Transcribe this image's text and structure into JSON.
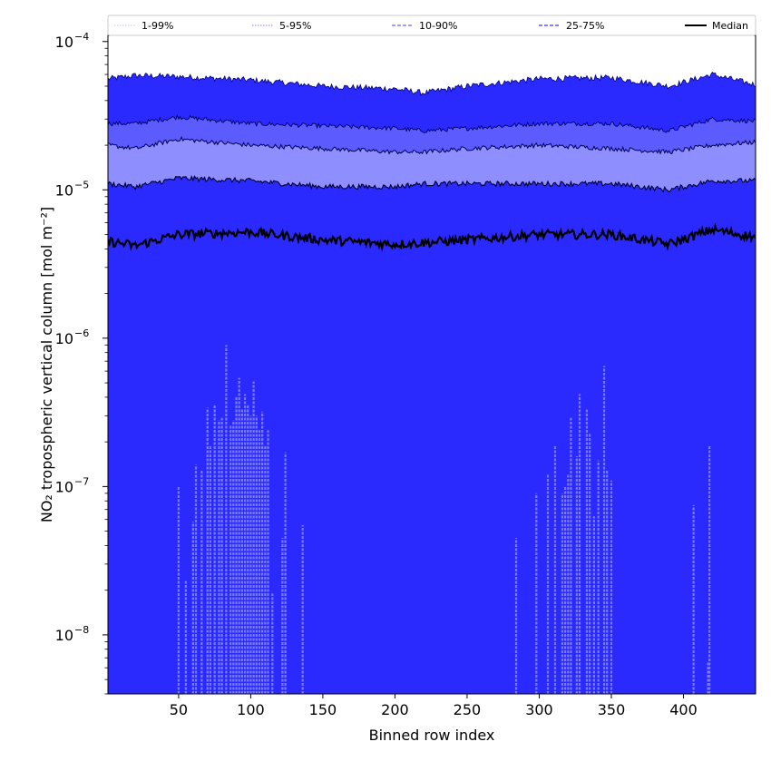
{
  "chart_data": {
    "type": "area",
    "title": "",
    "xlabel": "Binned row index",
    "ylabel": "NO₂ tropospheric vertical column [mol m⁻²]",
    "xscale": "linear",
    "yscale": "log",
    "xlim": [
      1,
      450
    ],
    "ylim": [
      4e-09,
      0.00011
    ],
    "x_ticks": [
      50,
      100,
      150,
      200,
      250,
      300,
      350,
      400
    ],
    "x_tick_labels": [
      "50",
      "100",
      "150",
      "200",
      "250",
      "300",
      "350",
      "400"
    ],
    "y_ticks": [
      1e-08,
      1e-07,
      1e-06,
      1e-05,
      0.0001
    ],
    "y_tick_labels": [
      "10",
      "10",
      "10",
      "10",
      "10"
    ],
    "y_tick_exponents": [
      "−8",
      "−7",
      "−6",
      "−5",
      "−4"
    ],
    "grid": false,
    "legend_position": "top",
    "legend": [
      {
        "label": "1-99%",
        "color": "#ccccff",
        "style": "dotted"
      },
      {
        "label": "5-95%",
        "color": "#9999ff",
        "style": "dotted"
      },
      {
        "label": "10-90%",
        "color": "#6666ff",
        "style": "dashed"
      },
      {
        "label": "25-75%",
        "color": "#3333ff",
        "style": "dashed"
      },
      {
        "label": "Median",
        "color": "#000000",
        "style": "solid"
      }
    ],
    "band_fill_colors": [
      "#2a2afe",
      "#5c5cfe",
      "#8e8efe",
      "#ccccff"
    ],
    "series": [
      {
        "name": "p99",
        "x": [
          1,
          20,
          50,
          100,
          150,
          200,
          220,
          250,
          300,
          350,
          390,
          420,
          450
        ],
        "values": [
          5.6e-05,
          5.9e-05,
          5.8e-05,
          5.5e-05,
          5e-05,
          4.8e-05,
          4.5e-05,
          5e-05,
          5.6e-05,
          5.7e-05,
          5e-05,
          6e-05,
          5.1e-05
        ]
      },
      {
        "name": "p95",
        "x": [
          1,
          20,
          50,
          100,
          150,
          200,
          220,
          250,
          300,
          350,
          390,
          420,
          450
        ],
        "values": [
          2.8e-05,
          2.8e-05,
          3.1e-05,
          2.8e-05,
          2.7e-05,
          2.6e-05,
          2.5e-05,
          2.6e-05,
          2.8e-05,
          2.8e-05,
          2.5e-05,
          3e-05,
          2.9e-05
        ]
      },
      {
        "name": "p90",
        "x": [
          1,
          20,
          50,
          100,
          150,
          200,
          220,
          250,
          300,
          350,
          390,
          420,
          450
        ],
        "values": [
          2e-05,
          1.9e-05,
          2.2e-05,
          2e-05,
          1.9e-05,
          1.8e-05,
          1.8e-05,
          1.9e-05,
          2e-05,
          1.9e-05,
          1.8e-05,
          2e-05,
          2.1e-05
        ]
      },
      {
        "name": "p75",
        "x": [
          1,
          20,
          50,
          100,
          150,
          200,
          220,
          250,
          300,
          350,
          390,
          420,
          450
        ],
        "values": [
          1.1e-05,
          1.05e-05,
          1.2e-05,
          1.15e-05,
          1.05e-05,
          1.05e-05,
          1.1e-05,
          1.1e-05,
          1.1e-05,
          1.1e-05,
          1e-05,
          1.15e-05,
          1.15e-05
        ]
      },
      {
        "name": "Median",
        "x": [
          1,
          20,
          50,
          100,
          150,
          200,
          220,
          250,
          300,
          350,
          390,
          420,
          450
        ],
        "values": [
          4.5e-06,
          4.2e-06,
          5e-06,
          5.2e-06,
          4.6e-06,
          4.3e-06,
          4.4e-06,
          4.6e-06,
          5e-06,
          5e-06,
          4.3e-06,
          5.4e-06,
          4.8e-06
        ]
      }
    ],
    "lower_percentile_spikes": {
      "description": "dashed 5% / 10% percentile traces, visible only at these bins",
      "x": [
        50,
        55,
        60,
        62,
        66,
        70,
        72,
        75,
        78,
        80,
        83,
        86,
        88,
        90,
        92,
        94,
        96,
        98,
        100,
        102,
        104,
        106,
        108,
        110,
        112,
        115,
        122,
        124,
        136,
        284,
        298,
        306,
        311,
        316,
        318,
        320,
        322,
        326,
        328,
        333,
        335,
        338,
        341,
        345,
        347,
        350,
        407,
        417,
        418
      ],
      "values": [
        1e-07,
        2.3e-08,
        5.8e-08,
        1.4e-07,
        1.3e-07,
        3.4e-07,
        1.9e-07,
        3.6e-07,
        2.8e-07,
        2.9e-07,
        9e-07,
        2.6e-07,
        2.8e-07,
        4e-07,
        5.4e-07,
        3.3e-07,
        4.2e-07,
        3.6e-07,
        3e-07,
        5.1e-07,
        3e-07,
        2.4e-07,
        3.2e-07,
        1.9e-07,
        2.4e-07,
        1.9e-08,
        4.5e-08,
        1.7e-07,
        5.5e-08,
        4.5e-08,
        9e-08,
        1.2e-07,
        1.9e-07,
        9e-08,
        1e-07,
        1.2e-07,
        2.9e-07,
        1.6e-07,
        4.2e-07,
        3.3e-07,
        2.3e-07,
        6.3e-08,
        1.5e-07,
        6.5e-07,
        1.3e-07,
        1.1e-07,
        7.5e-08,
        6.5e-09,
        1.9e-07
      ]
    }
  }
}
